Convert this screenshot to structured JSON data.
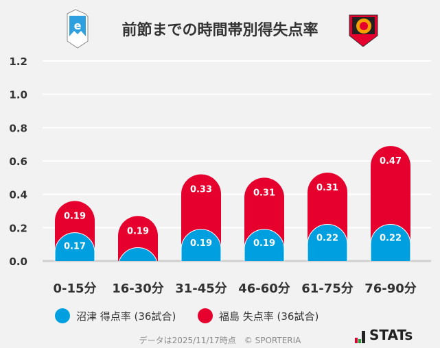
{
  "title": "前節までの時間帯別得失点率",
  "logos": {
    "home": "azul claro 1990",
    "away": "FUKUSHIMA UNITED FC"
  },
  "chart_data": {
    "type": "bar",
    "stacked": true,
    "categories": [
      "0-15分",
      "16-30分",
      "31-45分",
      "46-60分",
      "61-75分",
      "76-90分"
    ],
    "series": [
      {
        "name": "沼津 得点率 (36試合)",
        "color": "#00a0e0",
        "values": [
          0.17,
          0.08,
          0.19,
          0.19,
          0.22,
          0.22
        ],
        "labels": [
          "0.17",
          "",
          "0.19",
          "0.19",
          "0.22",
          "0.22"
        ]
      },
      {
        "name": "福島 失点率 (36試合)",
        "color": "#e6002d",
        "values": [
          0.19,
          0.19,
          0.33,
          0.31,
          0.31,
          0.47
        ],
        "labels": [
          "0.19",
          "0.19",
          "0.33",
          "0.31",
          "0.31",
          "0.47"
        ]
      }
    ],
    "ylim": [
      0,
      1.2
    ],
    "yticks": [
      "0.0",
      "0.2",
      "0.4",
      "0.6",
      "0.8",
      "1.0",
      "1.2"
    ],
    "grid": true,
    "legend": "bottom"
  },
  "footer": "データは2025/11/17時点　© SPORTERIA",
  "brand": "STATs"
}
